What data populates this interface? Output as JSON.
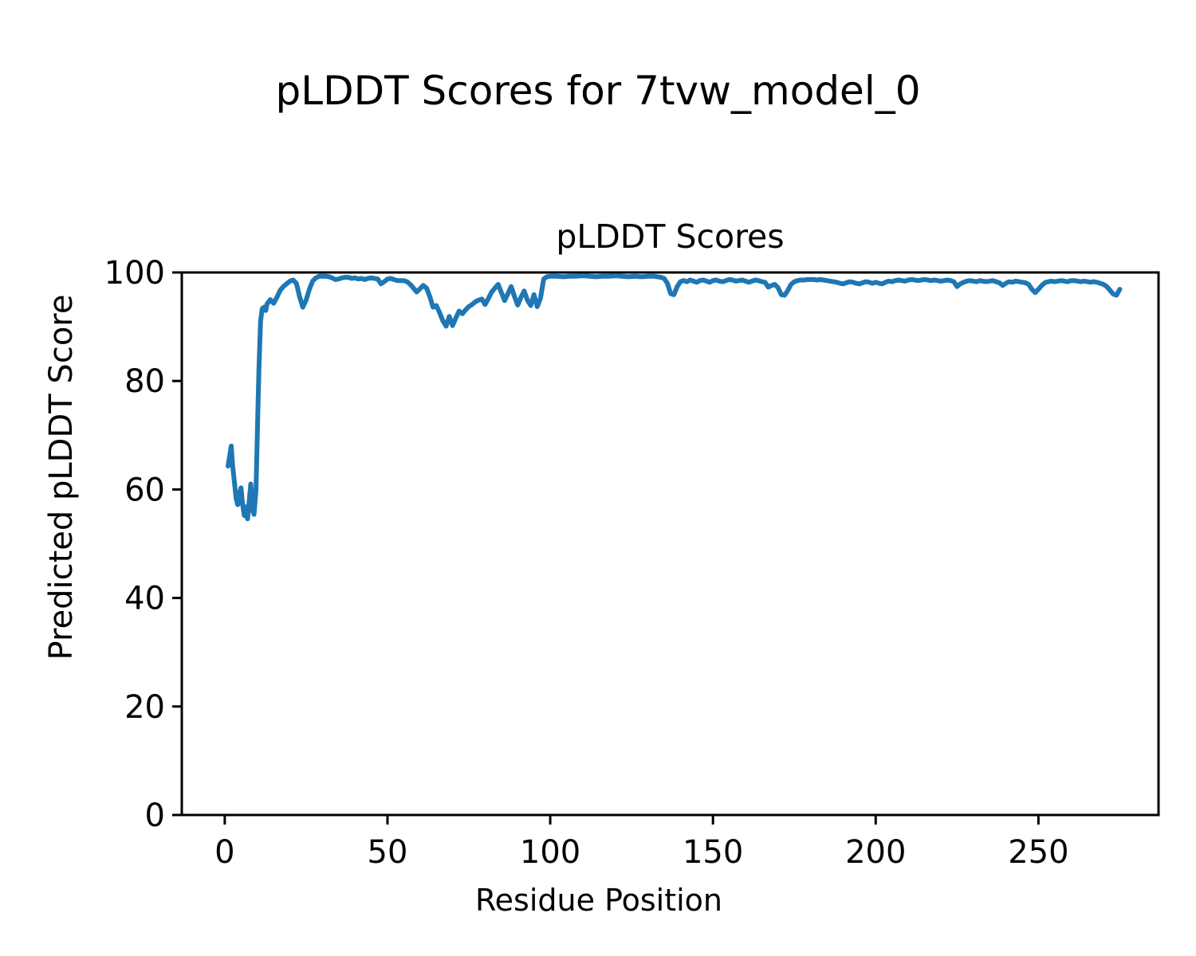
{
  "figure": {
    "background": "#ffffff",
    "text_color": "#000000",
    "spine_color": "#000000"
  },
  "chart_data": {
    "type": "line",
    "suptitle": "pLDDT Scores for 7tvw_model_0",
    "title": "pLDDT Scores",
    "xlabel": "Residue Position",
    "ylabel": "Predicted pLDDT Score",
    "xlim": [
      -13.2,
      286.9
    ],
    "ylim": [
      0,
      100
    ],
    "x_ticks": [
      0,
      50,
      100,
      150,
      200,
      250
    ],
    "y_ticks": [
      0,
      20,
      40,
      60,
      80,
      100
    ],
    "grid": false,
    "legend": null,
    "line_color": "#1f77b4",
    "line_width": 6,
    "series": [
      {
        "name": "Predicted pLDDT per residue",
        "points": [
          [
            1,
            64.3
          ],
          [
            1.6,
            66.5
          ],
          [
            2,
            68
          ],
          [
            2.4,
            64.5
          ],
          [
            3,
            61.2
          ],
          [
            3.5,
            58.3
          ],
          [
            4,
            57.2
          ],
          [
            4.4,
            58.8
          ],
          [
            5,
            60.3
          ],
          [
            5.5,
            57.2
          ],
          [
            6,
            55.2
          ],
          [
            6.4,
            56.8
          ],
          [
            7,
            54.6
          ],
          [
            7.5,
            57.8
          ],
          [
            8,
            61
          ],
          [
            8.5,
            56.2
          ],
          [
            9,
            55.4
          ],
          [
            9.6,
            60
          ],
          [
            10,
            70
          ],
          [
            10.5,
            82
          ],
          [
            11,
            91
          ],
          [
            11.5,
            93.3
          ],
          [
            12,
            93.6
          ],
          [
            12.6,
            93
          ],
          [
            13,
            94.2
          ],
          [
            14,
            95
          ],
          [
            15,
            94.3
          ],
          [
            16,
            95.4
          ],
          [
            17,
            96.7
          ],
          [
            18,
            97.4
          ],
          [
            19,
            97.9
          ],
          [
            20,
            98.4
          ],
          [
            21,
            98.6
          ],
          [
            22,
            98
          ],
          [
            23,
            95.5
          ],
          [
            24,
            93.6
          ],
          [
            25,
            94.9
          ],
          [
            26,
            96.9
          ],
          [
            27,
            98.4
          ],
          [
            28,
            99
          ],
          [
            29,
            99.3
          ],
          [
            30,
            99.3
          ],
          [
            31,
            99.3
          ],
          [
            32,
            99.2
          ],
          [
            33,
            99
          ],
          [
            34,
            98.7
          ],
          [
            35,
            98.8
          ],
          [
            36,
            99
          ],
          [
            37,
            99.1
          ],
          [
            38,
            99.1
          ],
          [
            39,
            98.9
          ],
          [
            40,
            99
          ],
          [
            41,
            98.8
          ],
          [
            42,
            98.9
          ],
          [
            43,
            98.7
          ],
          [
            44,
            98.9
          ],
          [
            45,
            99
          ],
          [
            46,
            98.9
          ],
          [
            47,
            98.8
          ],
          [
            48,
            97.9
          ],
          [
            49,
            98.3
          ],
          [
            50,
            98.8
          ],
          [
            51,
            98.9
          ],
          [
            52,
            98.7
          ],
          [
            53,
            98.5
          ],
          [
            54,
            98.5
          ],
          [
            55,
            98.5
          ],
          [
            56,
            98.3
          ],
          [
            57,
            97.8
          ],
          [
            58,
            97.1
          ],
          [
            59,
            96.4
          ],
          [
            60,
            97
          ],
          [
            61,
            97.6
          ],
          [
            62,
            97.1
          ],
          [
            63,
            95.6
          ],
          [
            64,
            93.6
          ],
          [
            65,
            93.9
          ],
          [
            66,
            92.6
          ],
          [
            67,
            91.1
          ],
          [
            68,
            90.1
          ],
          [
            69,
            91.9
          ],
          [
            70,
            90.2
          ],
          [
            71,
            91.6
          ],
          [
            72,
            92.9
          ],
          [
            73,
            92.4
          ],
          [
            74,
            93.1
          ],
          [
            75,
            93.7
          ],
          [
            76,
            94.1
          ],
          [
            77,
            94.6
          ],
          [
            78,
            94.9
          ],
          [
            79,
            95.1
          ],
          [
            80,
            94.1
          ],
          [
            81,
            95.2
          ],
          [
            82,
            96.4
          ],
          [
            83,
            97.1
          ],
          [
            84,
            97.8
          ],
          [
            85,
            96.3
          ],
          [
            86,
            94.8
          ],
          [
            87,
            96.1
          ],
          [
            88,
            97.4
          ],
          [
            89,
            95.6
          ],
          [
            90,
            94
          ],
          [
            91,
            95.4
          ],
          [
            92,
            96.6
          ],
          [
            93,
            94.9
          ],
          [
            94,
            93.9
          ],
          [
            95,
            95.9
          ],
          [
            96,
            93.7
          ],
          [
            97,
            95.2
          ],
          [
            98,
            98.8
          ],
          [
            99,
            99.2
          ],
          [
            100,
            99.3
          ],
          [
            102,
            99.3
          ],
          [
            104,
            99.2
          ],
          [
            106,
            99.3
          ],
          [
            108,
            99.3
          ],
          [
            110,
            99.4
          ],
          [
            112,
            99.3
          ],
          [
            114,
            99.2
          ],
          [
            116,
            99.3
          ],
          [
            118,
            99.3
          ],
          [
            120,
            99.4
          ],
          [
            122,
            99.3
          ],
          [
            124,
            99.2
          ],
          [
            126,
            99.3
          ],
          [
            128,
            99.2
          ],
          [
            130,
            99.3
          ],
          [
            132,
            99.3
          ],
          [
            134,
            99.1
          ],
          [
            135,
            98.9
          ],
          [
            136,
            98
          ],
          [
            137,
            96.1
          ],
          [
            138,
            95.9
          ],
          [
            139,
            97.4
          ],
          [
            140,
            98.3
          ],
          [
            141,
            98.5
          ],
          [
            142,
            98.3
          ],
          [
            143,
            98.6
          ],
          [
            144,
            98.4
          ],
          [
            145,
            98.2
          ],
          [
            146,
            98.5
          ],
          [
            147,
            98.6
          ],
          [
            148,
            98.4
          ],
          [
            149,
            98.2
          ],
          [
            150,
            98.5
          ],
          [
            151,
            98.6
          ],
          [
            152,
            98.4
          ],
          [
            153,
            98.3
          ],
          [
            154,
            98.5
          ],
          [
            155,
            98.7
          ],
          [
            156,
            98.6
          ],
          [
            157,
            98.4
          ],
          [
            158,
            98.5
          ],
          [
            159,
            98.6
          ],
          [
            160,
            98.4
          ],
          [
            161,
            98.2
          ],
          [
            162,
            98.4
          ],
          [
            163,
            98.6
          ],
          [
            164,
            98.5
          ],
          [
            165,
            98.3
          ],
          [
            166,
            98.2
          ],
          [
            167,
            97.3
          ],
          [
            168,
            97.6
          ],
          [
            169,
            97.8
          ],
          [
            170,
            97.2
          ],
          [
            171,
            95.9
          ],
          [
            172,
            95.8
          ],
          [
            173,
            96.7
          ],
          [
            174,
            97.8
          ],
          [
            175,
            98.3
          ],
          [
            176,
            98.5
          ],
          [
            177,
            98.6
          ],
          [
            178,
            98.6
          ],
          [
            179,
            98.7
          ],
          [
            180,
            98.7
          ],
          [
            181,
            98.7
          ],
          [
            182,
            98.6
          ],
          [
            183,
            98.7
          ],
          [
            184,
            98.6
          ],
          [
            185,
            98.5
          ],
          [
            186,
            98.4
          ],
          [
            187,
            98.3
          ],
          [
            188,
            98.2
          ],
          [
            189,
            98
          ],
          [
            190,
            97.9
          ],
          [
            191,
            98.1
          ],
          [
            192,
            98.3
          ],
          [
            193,
            98.2
          ],
          [
            194,
            98
          ],
          [
            195,
            97.9
          ],
          [
            196,
            98.1
          ],
          [
            197,
            98.3
          ],
          [
            198,
            98.2
          ],
          [
            199,
            98
          ],
          [
            200,
            98.2
          ],
          [
            201,
            98
          ],
          [
            202,
            97.9
          ],
          [
            203,
            98.2
          ],
          [
            204,
            98.4
          ],
          [
            205,
            98.3
          ],
          [
            206,
            98.5
          ],
          [
            207,
            98.6
          ],
          [
            208,
            98.5
          ],
          [
            209,
            98.4
          ],
          [
            210,
            98.6
          ],
          [
            211,
            98.7
          ],
          [
            212,
            98.6
          ],
          [
            213,
            98.5
          ],
          [
            214,
            98.6
          ],
          [
            215,
            98.7
          ],
          [
            216,
            98.6
          ],
          [
            217,
            98.5
          ],
          [
            218,
            98.6
          ],
          [
            219,
            98.5
          ],
          [
            220,
            98.4
          ],
          [
            221,
            98.5
          ],
          [
            222,
            98.6
          ],
          [
            223,
            98.5
          ],
          [
            224,
            98.3
          ],
          [
            225,
            97.4
          ],
          [
            226,
            97.9
          ],
          [
            227,
            98.2
          ],
          [
            228,
            98.4
          ],
          [
            229,
            98.5
          ],
          [
            230,
            98.4
          ],
          [
            231,
            98.3
          ],
          [
            232,
            98.5
          ],
          [
            233,
            98.4
          ],
          [
            234,
            98.3
          ],
          [
            235,
            98.4
          ],
          [
            236,
            98.5
          ],
          [
            237,
            98.3
          ],
          [
            238,
            98.1
          ],
          [
            239,
            97.6
          ],
          [
            240,
            98
          ],
          [
            241,
            98.3
          ],
          [
            242,
            98.2
          ],
          [
            243,
            98.4
          ],
          [
            244,
            98.3
          ],
          [
            245,
            98.2
          ],
          [
            246,
            98.1
          ],
          [
            247,
            97.8
          ],
          [
            248,
            96.9
          ],
          [
            249,
            96.3
          ],
          [
            250,
            96.9
          ],
          [
            251,
            97.6
          ],
          [
            252,
            98.1
          ],
          [
            253,
            98.3
          ],
          [
            254,
            98.4
          ],
          [
            255,
            98.3
          ],
          [
            256,
            98.4
          ],
          [
            257,
            98.5
          ],
          [
            258,
            98.4
          ],
          [
            259,
            98.3
          ],
          [
            260,
            98.5
          ],
          [
            261,
            98.5
          ],
          [
            262,
            98.4
          ],
          [
            263,
            98.3
          ],
          [
            264,
            98.4
          ],
          [
            265,
            98.3
          ],
          [
            266,
            98.2
          ],
          [
            267,
            98.3
          ],
          [
            268,
            98.2
          ],
          [
            269,
            98
          ],
          [
            270,
            97.8
          ],
          [
            271,
            97.4
          ],
          [
            272,
            96.7
          ],
          [
            273,
            96
          ],
          [
            274,
            95.8
          ],
          [
            275,
            96.9
          ]
        ]
      }
    ]
  }
}
